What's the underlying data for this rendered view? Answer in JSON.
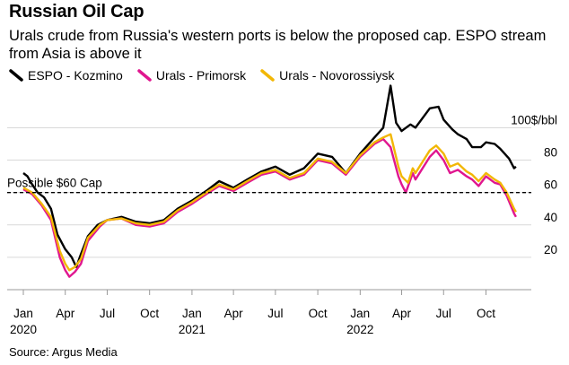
{
  "title": "Russian Oil Cap",
  "subtitle": "Urals crude from Russia's western ports is below the proposed cap. ESPO stream from Asia is above it",
  "source": "Source: Argus Media",
  "chart_data": {
    "type": "line",
    "ylabel_unit": "$/bbl",
    "ylim": [
      0,
      108
    ],
    "yticks": [
      {
        "value": 100,
        "label": "100$/bbl"
      },
      {
        "value": 80,
        "label": "80"
      },
      {
        "value": 60,
        "label": "60"
      },
      {
        "value": 40,
        "label": "40"
      },
      {
        "value": 20,
        "label": "20"
      }
    ],
    "xlim": [
      "2020-01-01",
      "2022-12-15"
    ],
    "xticks": [
      {
        "date": "2020-01-01",
        "label": "Jan",
        "sublabel": "2020"
      },
      {
        "date": "2020-04-01",
        "label": "Apr",
        "sublabel": ""
      },
      {
        "date": "2020-07-01",
        "label": "Jul",
        "sublabel": ""
      },
      {
        "date": "2020-10-01",
        "label": "Oct",
        "sublabel": ""
      },
      {
        "date": "2021-01-01",
        "label": "Jan",
        "sublabel": "2021"
      },
      {
        "date": "2021-04-01",
        "label": "Apr",
        "sublabel": ""
      },
      {
        "date": "2021-07-01",
        "label": "Jul",
        "sublabel": ""
      },
      {
        "date": "2021-10-01",
        "label": "Oct",
        "sublabel": ""
      },
      {
        "date": "2022-01-01",
        "label": "Jan",
        "sublabel": "2022"
      },
      {
        "date": "2022-04-01",
        "label": "Apr",
        "sublabel": ""
      },
      {
        "date": "2022-07-01",
        "label": "Jul",
        "sublabel": ""
      },
      {
        "date": "2022-10-01",
        "label": "Oct",
        "sublabel": ""
      }
    ],
    "grid": true,
    "reference_line": {
      "value": 60,
      "label": "Possible $60 Cap",
      "style": "dashed"
    },
    "legend_position": "top-left",
    "series": [
      {
        "name": "ESPO - Kozmino",
        "color": "#000000",
        "points": [
          [
            "2020-01-01",
            72
          ],
          [
            "2020-01-10",
            70
          ],
          [
            "2020-01-20",
            65
          ],
          [
            "2020-02-01",
            60
          ],
          [
            "2020-02-15",
            57
          ],
          [
            "2020-03-01",
            50
          ],
          [
            "2020-03-15",
            34
          ],
          [
            "2020-04-01",
            25
          ],
          [
            "2020-04-15",
            20
          ],
          [
            "2020-04-25",
            14
          ],
          [
            "2020-05-05",
            22
          ],
          [
            "2020-05-20",
            33
          ],
          [
            "2020-06-10",
            40
          ],
          [
            "2020-07-01",
            43
          ],
          [
            "2020-08-01",
            45
          ],
          [
            "2020-09-01",
            42
          ],
          [
            "2020-10-01",
            41
          ],
          [
            "2020-11-01",
            43
          ],
          [
            "2020-12-01",
            50
          ],
          [
            "2021-01-01",
            55
          ],
          [
            "2021-02-01",
            61
          ],
          [
            "2021-03-01",
            67
          ],
          [
            "2021-04-01",
            63
          ],
          [
            "2021-05-01",
            68
          ],
          [
            "2021-06-01",
            73
          ],
          [
            "2021-07-01",
            76
          ],
          [
            "2021-08-01",
            71
          ],
          [
            "2021-09-01",
            75
          ],
          [
            "2021-10-01",
            84
          ],
          [
            "2021-11-01",
            82
          ],
          [
            "2021-12-01",
            72
          ],
          [
            "2022-01-01",
            84
          ],
          [
            "2022-02-01",
            94
          ],
          [
            "2022-02-20",
            100
          ],
          [
            "2022-03-08",
            126
          ],
          [
            "2022-03-20",
            103
          ],
          [
            "2022-04-01",
            98
          ],
          [
            "2022-04-20",
            102
          ],
          [
            "2022-05-01",
            100
          ],
          [
            "2022-06-01",
            112
          ],
          [
            "2022-06-20",
            113
          ],
          [
            "2022-07-01",
            105
          ],
          [
            "2022-07-20",
            99
          ],
          [
            "2022-08-01",
            96
          ],
          [
            "2022-08-20",
            93
          ],
          [
            "2022-09-01",
            88
          ],
          [
            "2022-09-20",
            88
          ],
          [
            "2022-10-01",
            91
          ],
          [
            "2022-10-20",
            90
          ],
          [
            "2022-11-01",
            87
          ],
          [
            "2022-11-20",
            81
          ],
          [
            "2022-12-01",
            75
          ],
          [
            "2022-12-05",
            76
          ]
        ]
      },
      {
        "name": "Urals - Primorsk",
        "color": "#e0168f",
        "points": [
          [
            "2020-01-01",
            62
          ],
          [
            "2020-01-20",
            59
          ],
          [
            "2020-02-10",
            52
          ],
          [
            "2020-03-01",
            43
          ],
          [
            "2020-03-20",
            20
          ],
          [
            "2020-04-01",
            12
          ],
          [
            "2020-04-10",
            8
          ],
          [
            "2020-04-22",
            11
          ],
          [
            "2020-05-05",
            16
          ],
          [
            "2020-05-20",
            30
          ],
          [
            "2020-06-15",
            39
          ],
          [
            "2020-07-01",
            43
          ],
          [
            "2020-08-01",
            44
          ],
          [
            "2020-09-01",
            40
          ],
          [
            "2020-10-01",
            39
          ],
          [
            "2020-11-01",
            41
          ],
          [
            "2020-12-01",
            48
          ],
          [
            "2021-01-01",
            53
          ],
          [
            "2021-02-01",
            59
          ],
          [
            "2021-03-01",
            64
          ],
          [
            "2021-04-01",
            61
          ],
          [
            "2021-05-01",
            66
          ],
          [
            "2021-06-01",
            71
          ],
          [
            "2021-07-01",
            73
          ],
          [
            "2021-08-01",
            68
          ],
          [
            "2021-09-01",
            71
          ],
          [
            "2021-10-01",
            80
          ],
          [
            "2021-11-01",
            78
          ],
          [
            "2021-12-01",
            71
          ],
          [
            "2022-01-01",
            82
          ],
          [
            "2022-02-01",
            90
          ],
          [
            "2022-02-20",
            93
          ],
          [
            "2022-03-08",
            88
          ],
          [
            "2022-03-25",
            70
          ],
          [
            "2022-04-01",
            65
          ],
          [
            "2022-04-10",
            60
          ],
          [
            "2022-04-25",
            72
          ],
          [
            "2022-05-01",
            68
          ],
          [
            "2022-06-01",
            82
          ],
          [
            "2022-06-15",
            86
          ],
          [
            "2022-07-01",
            80
          ],
          [
            "2022-07-15",
            72
          ],
          [
            "2022-08-01",
            74
          ],
          [
            "2022-08-20",
            70
          ],
          [
            "2022-09-01",
            68
          ],
          [
            "2022-09-15",
            64
          ],
          [
            "2022-10-01",
            70
          ],
          [
            "2022-10-20",
            66
          ],
          [
            "2022-11-01",
            65
          ],
          [
            "2022-11-15",
            58
          ],
          [
            "2022-12-01",
            47
          ],
          [
            "2022-12-05",
            45
          ]
        ]
      },
      {
        "name": "Urals - Novorossiysk",
        "color": "#f2b705",
        "points": [
          [
            "2020-01-01",
            63
          ],
          [
            "2020-01-20",
            60
          ],
          [
            "2020-02-10",
            53
          ],
          [
            "2020-03-01",
            45
          ],
          [
            "2020-03-20",
            24
          ],
          [
            "2020-04-01",
            16
          ],
          [
            "2020-04-10",
            12
          ],
          [
            "2020-04-22",
            14
          ],
          [
            "2020-05-05",
            19
          ],
          [
            "2020-05-20",
            32
          ],
          [
            "2020-06-15",
            40
          ],
          [
            "2020-07-01",
            43
          ],
          [
            "2020-08-01",
            44
          ],
          [
            "2020-09-01",
            41
          ],
          [
            "2020-10-01",
            40
          ],
          [
            "2020-11-01",
            42
          ],
          [
            "2020-12-01",
            49
          ],
          [
            "2021-01-01",
            54
          ],
          [
            "2021-02-01",
            60
          ],
          [
            "2021-03-01",
            65
          ],
          [
            "2021-04-01",
            62
          ],
          [
            "2021-05-01",
            67
          ],
          [
            "2021-06-01",
            72
          ],
          [
            "2021-07-01",
            74
          ],
          [
            "2021-08-01",
            69
          ],
          [
            "2021-09-01",
            72
          ],
          [
            "2021-10-01",
            81
          ],
          [
            "2021-11-01",
            79
          ],
          [
            "2021-12-01",
            72
          ],
          [
            "2022-01-01",
            83
          ],
          [
            "2022-02-01",
            91
          ],
          [
            "2022-02-20",
            94
          ],
          [
            "2022-03-08",
            96
          ],
          [
            "2022-03-25",
            76
          ],
          [
            "2022-04-01",
            70
          ],
          [
            "2022-04-15",
            66
          ],
          [
            "2022-04-25",
            75
          ],
          [
            "2022-05-01",
            72
          ],
          [
            "2022-06-01",
            86
          ],
          [
            "2022-06-15",
            89
          ],
          [
            "2022-07-01",
            84
          ],
          [
            "2022-07-15",
            76
          ],
          [
            "2022-08-01",
            78
          ],
          [
            "2022-08-20",
            73
          ],
          [
            "2022-09-01",
            71
          ],
          [
            "2022-09-15",
            67
          ],
          [
            "2022-10-01",
            72
          ],
          [
            "2022-10-20",
            68
          ],
          [
            "2022-11-01",
            66
          ],
          [
            "2022-11-15",
            60
          ],
          [
            "2022-12-01",
            50
          ],
          [
            "2022-12-05",
            48
          ]
        ]
      }
    ]
  }
}
